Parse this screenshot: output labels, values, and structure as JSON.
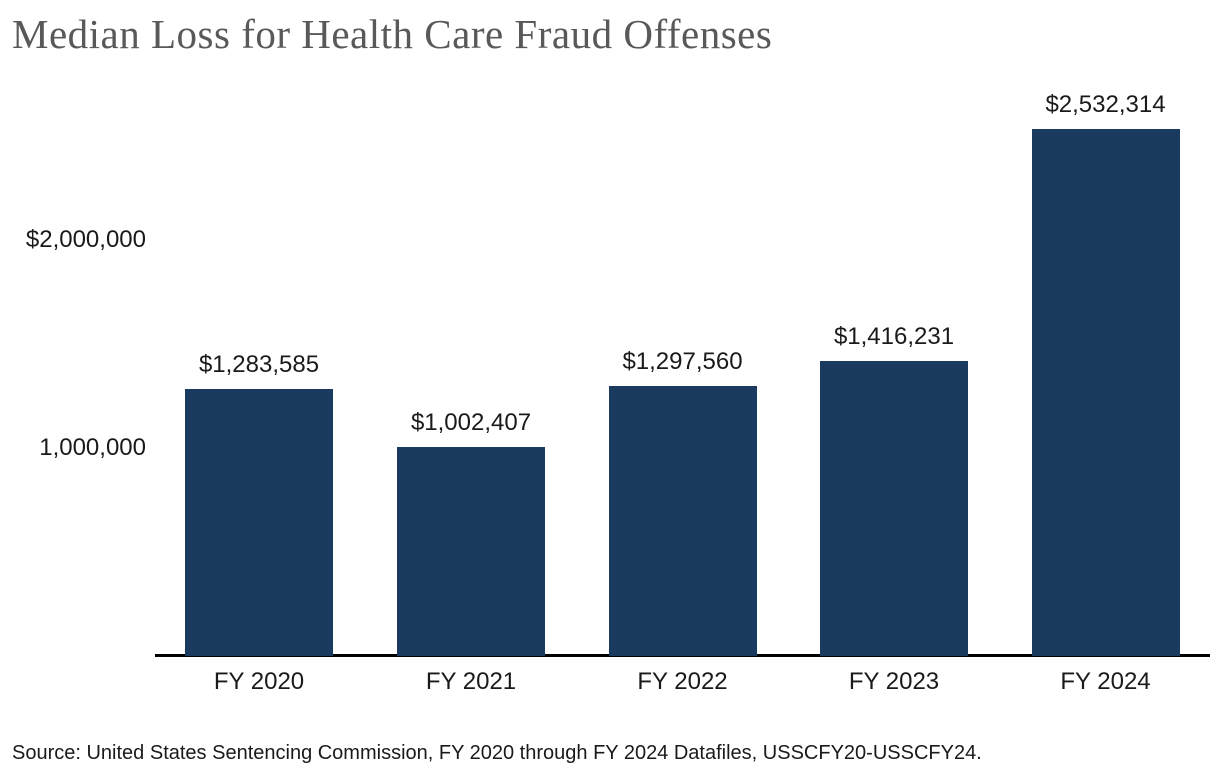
{
  "chart_data": {
    "type": "bar",
    "title": "Median Loss for Health Care Fraud Offenses",
    "categories": [
      "FY 2020",
      "FY 2021",
      "FY 2022",
      "FY 2023",
      "FY 2024"
    ],
    "values": [
      1283585,
      1002407,
      1297560,
      1416231,
      2532314
    ],
    "value_labels": [
      "$1,283,585",
      "$1,002,407",
      "$1,297,560",
      "$1,416,231",
      "$2,532,314"
    ],
    "y_ticks": [
      {
        "value": 2000000,
        "label": "$2,000,000"
      },
      {
        "value": 1000000,
        "label": "1,000,000"
      }
    ],
    "xlabel": "",
    "ylabel": "",
    "ylim": [
      0,
      2650000
    ],
    "grid": false,
    "legend_position": "none",
    "source_note": "Source: United States Sentencing Commission, FY 2020 through FY 2024 Datafiles, USSCFY20-USSCFY24."
  },
  "colors": {
    "bar": "#1b3a5f",
    "title_text": "#595959",
    "label_text": "#1a1a1a",
    "axis_line": "#000000",
    "background": "#ffffff"
  }
}
